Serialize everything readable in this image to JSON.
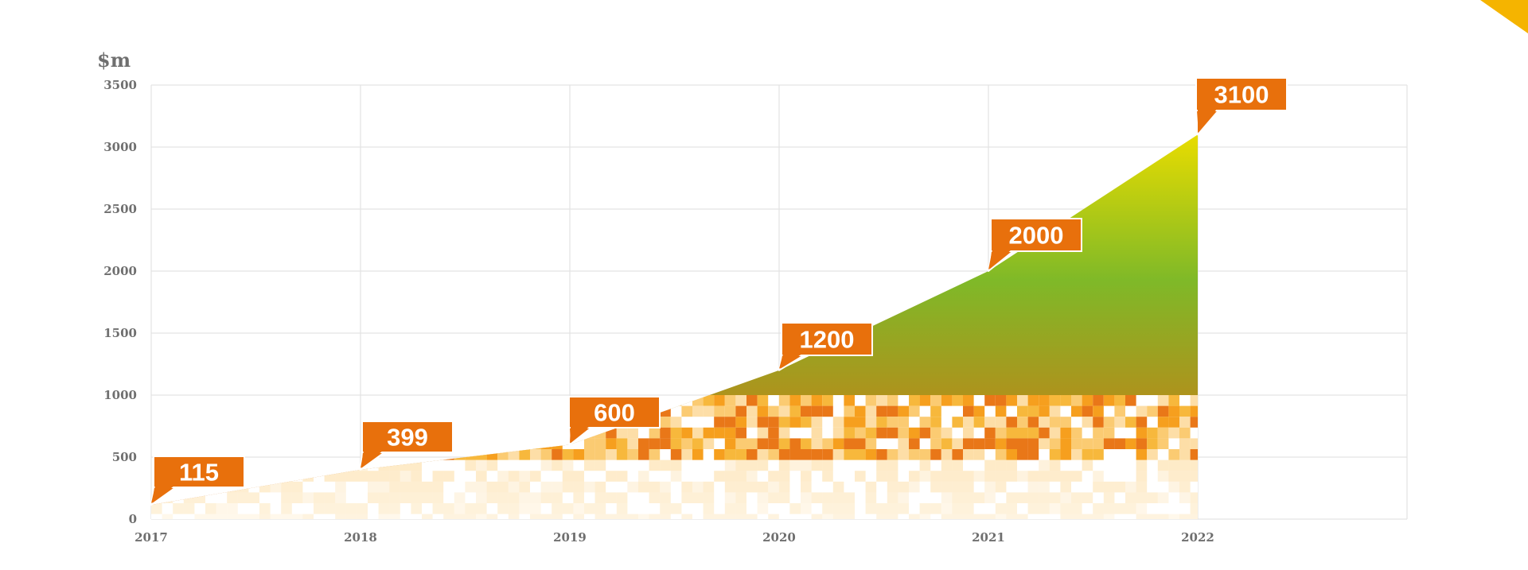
{
  "chart_data": {
    "type": "area",
    "title": "",
    "ylabel": "$m",
    "xlabel": "",
    "x": [
      2017,
      2018,
      2019,
      2020,
      2021,
      2022
    ],
    "x_ticks": [
      "2017",
      "2018",
      "2019",
      "2020",
      "2021",
      "2022"
    ],
    "y_ticks": [
      "0",
      "500",
      "1000",
      "1500",
      "2000",
      "2500",
      "3000",
      "3500"
    ],
    "ylim": [
      0,
      3500
    ],
    "grid": true,
    "series": [
      {
        "values": [
          115,
          399,
          600,
          1200,
          2000,
          3100
        ]
      }
    ],
    "data_labels": [
      "115",
      "399",
      "600",
      "1200",
      "2000",
      "3100"
    ],
    "colors": {
      "area_top": "#e8dc00",
      "area_mid": "#7fb928",
      "area_bottom": "#e06a10",
      "callout": "#e8700c",
      "pattern": [
        "#f59a12",
        "#f7b432",
        "#fbc86a",
        "#fddca2",
        "#e8700c"
      ],
      "corner": "#f5b400",
      "axis_text": "#6f6f6f"
    }
  }
}
